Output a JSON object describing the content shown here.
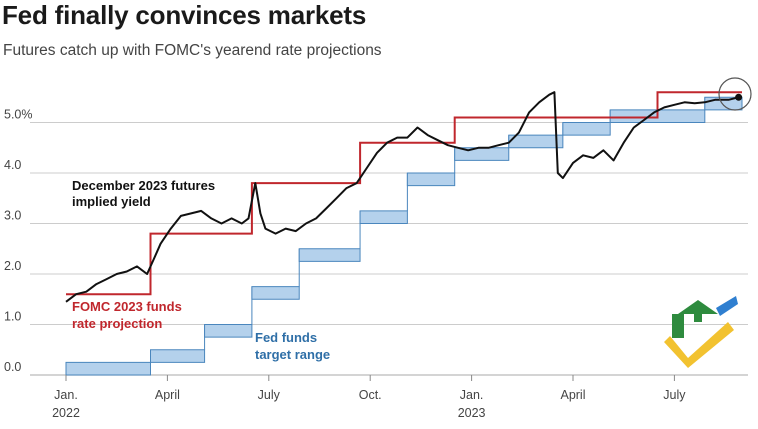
{
  "title": "Fed finally convinces markets",
  "subtitle": "Futures catch up with FOMC's yearend rate projections",
  "colors": {
    "projection": "#c0272d",
    "target_fill": "#b4d1ec",
    "target_stroke": "#4a86bd",
    "futures": "#111111",
    "grid": "#bbbbbb",
    "annotation_futures": "#111111",
    "annotation_projection": "#c0272d",
    "annotation_target": "#2f6fa7"
  },
  "chart_data": {
    "type": "line",
    "title": "Fed finally convinces markets",
    "subtitle": "Futures catch up with FOMC's yearend rate projections",
    "ylim": [
      0,
      5.9
    ],
    "y_ticks": [
      {
        "value": 0,
        "label": "0.0"
      },
      {
        "value": 1,
        "label": "1.0"
      },
      {
        "value": 2,
        "label": "2.0"
      },
      {
        "value": 3,
        "label": "3.0"
      },
      {
        "value": 4,
        "label": "4.0"
      },
      {
        "value": 5,
        "label": "5.0%"
      }
    ],
    "xlim_months": [
      0,
      20.3
    ],
    "x_ticks": [
      {
        "month": 0,
        "label": "Jan.",
        "sublabel": "2022"
      },
      {
        "month": 3,
        "label": "April",
        "sublabel": ""
      },
      {
        "month": 6,
        "label": "July",
        "sublabel": ""
      },
      {
        "month": 9,
        "label": "Oct.",
        "sublabel": ""
      },
      {
        "month": 12,
        "label": "Jan.",
        "sublabel": "2023"
      },
      {
        "month": 15,
        "label": "April",
        "sublabel": ""
      },
      {
        "month": 18,
        "label": "July",
        "sublabel": ""
      }
    ],
    "series": [
      {
        "name": "FOMC 2023 funds rate projection",
        "kind": "step",
        "points": [
          [
            0,
            1.6
          ],
          [
            2.5,
            1.6
          ],
          [
            2.5,
            2.8
          ],
          [
            5.5,
            2.8
          ],
          [
            5.5,
            3.8
          ],
          [
            8.7,
            3.8
          ],
          [
            8.7,
            4.6
          ],
          [
            11.5,
            4.6
          ],
          [
            11.5,
            5.1
          ],
          [
            17.5,
            5.1
          ],
          [
            17.5,
            5.6
          ],
          [
            20.0,
            5.6
          ]
        ]
      },
      {
        "name": "Fed funds target range",
        "kind": "band",
        "steps": [
          {
            "start": 0,
            "end": 2.5,
            "low": 0.0,
            "high": 0.25
          },
          {
            "start": 2.5,
            "end": 4.1,
            "low": 0.25,
            "high": 0.5
          },
          {
            "start": 4.1,
            "end": 5.5,
            "low": 0.75,
            "high": 1.0
          },
          {
            "start": 5.5,
            "end": 6.9,
            "low": 1.5,
            "high": 1.75
          },
          {
            "start": 6.9,
            "end": 8.7,
            "low": 2.25,
            "high": 2.5
          },
          {
            "start": 8.7,
            "end": 10.1,
            "low": 3.0,
            "high": 3.25
          },
          {
            "start": 10.1,
            "end": 11.5,
            "low": 3.75,
            "high": 4.0
          },
          {
            "start": 11.5,
            "end": 13.1,
            "low": 4.25,
            "high": 4.5
          },
          {
            "start": 13.1,
            "end": 14.7,
            "low": 4.5,
            "high": 4.75
          },
          {
            "start": 14.7,
            "end": 16.1,
            "low": 4.75,
            "high": 5.0
          },
          {
            "start": 16.1,
            "end": 18.9,
            "low": 5.0,
            "high": 5.25
          },
          {
            "start": 18.9,
            "end": 20.0,
            "low": 5.25,
            "high": 5.5
          }
        ]
      },
      {
        "name": "December 2023 futures implied yield",
        "kind": "line",
        "points": [
          [
            0,
            1.45
          ],
          [
            0.3,
            1.6
          ],
          [
            0.6,
            1.65
          ],
          [
            0.9,
            1.8
          ],
          [
            1.2,
            1.9
          ],
          [
            1.5,
            2.0
          ],
          [
            1.8,
            2.05
          ],
          [
            2.1,
            2.15
          ],
          [
            2.4,
            2.0
          ],
          [
            2.6,
            2.3
          ],
          [
            2.8,
            2.6
          ],
          [
            3.1,
            2.9
          ],
          [
            3.4,
            3.15
          ],
          [
            3.7,
            3.2
          ],
          [
            4.0,
            3.25
          ],
          [
            4.3,
            3.1
          ],
          [
            4.6,
            3.0
          ],
          [
            4.9,
            3.1
          ],
          [
            5.2,
            3.0
          ],
          [
            5.4,
            3.1
          ],
          [
            5.6,
            3.8
          ],
          [
            5.75,
            3.2
          ],
          [
            5.9,
            2.9
          ],
          [
            6.2,
            2.8
          ],
          [
            6.5,
            2.9
          ],
          [
            6.8,
            2.85
          ],
          [
            7.1,
            3.0
          ],
          [
            7.4,
            3.1
          ],
          [
            7.7,
            3.3
          ],
          [
            8.0,
            3.5
          ],
          [
            8.3,
            3.7
          ],
          [
            8.6,
            3.8
          ],
          [
            8.9,
            4.1
          ],
          [
            9.2,
            4.4
          ],
          [
            9.5,
            4.6
          ],
          [
            9.8,
            4.7
          ],
          [
            10.1,
            4.7
          ],
          [
            10.4,
            4.9
          ],
          [
            10.7,
            4.75
          ],
          [
            11.0,
            4.65
          ],
          [
            11.3,
            4.55
          ],
          [
            11.6,
            4.5
          ],
          [
            11.9,
            4.45
          ],
          [
            12.2,
            4.5
          ],
          [
            12.5,
            4.5
          ],
          [
            12.8,
            4.55
          ],
          [
            13.1,
            4.6
          ],
          [
            13.4,
            4.8
          ],
          [
            13.7,
            5.2
          ],
          [
            14.0,
            5.4
          ],
          [
            14.3,
            5.55
          ],
          [
            14.45,
            5.6
          ],
          [
            14.55,
            4.0
          ],
          [
            14.7,
            3.9
          ],
          [
            15.0,
            4.2
          ],
          [
            15.3,
            4.35
          ],
          [
            15.6,
            4.3
          ],
          [
            15.9,
            4.45
          ],
          [
            16.2,
            4.25
          ],
          [
            16.5,
            4.6
          ],
          [
            16.8,
            4.9
          ],
          [
            17.1,
            5.05
          ],
          [
            17.4,
            5.2
          ],
          [
            17.7,
            5.3
          ],
          [
            18.0,
            5.35
          ],
          [
            18.3,
            5.4
          ],
          [
            18.6,
            5.38
          ],
          [
            18.9,
            5.4
          ],
          [
            19.2,
            5.45
          ],
          [
            19.6,
            5.45
          ],
          [
            19.9,
            5.5
          ]
        ]
      }
    ],
    "annotations": [
      {
        "series": "December 2023 futures implied yield",
        "lines": [
          "December 2023 futures",
          "implied yield"
        ]
      },
      {
        "series": "FOMC 2023 funds rate projection",
        "lines": [
          "FOMC 2023 funds",
          "rate projection"
        ]
      },
      {
        "series": "Fed funds target range",
        "lines": [
          "Fed funds",
          "target range"
        ]
      }
    ]
  }
}
